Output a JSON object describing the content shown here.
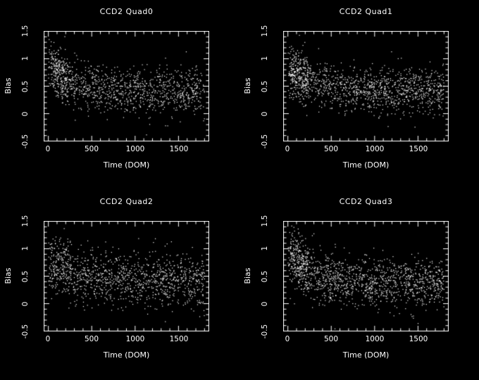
{
  "figure": {
    "background": "#000000",
    "foreground": "#ffffff",
    "layout": "2x2 scatter grid"
  },
  "chart_data": [
    {
      "type": "scatter",
      "title": "CCD2 Quad0",
      "xlabel": "Time (DOM)",
      "ylabel": "Bias",
      "xlim": [
        -50,
        1850
      ],
      "ylim": [
        -0.5,
        1.5
      ],
      "x_ticks": [
        0,
        500,
        1000,
        1500
      ],
      "y_ticks": [
        -0.5,
        0,
        0.5,
        1,
        1.5
      ],
      "x_tick_labels": [
        "0",
        "500",
        "1000",
        "1500"
      ],
      "y_tick_labels": [
        "-0.5",
        "0",
        "0.5",
        "1",
        "1.5"
      ],
      "points_model": {
        "seed": 11,
        "n": 1050,
        "mean_base": 0.4,
        "mean_amp": 0.45,
        "tau": 260,
        "sd": 0.21,
        "burst_n": 140,
        "burst_x": [
          30,
          220
        ]
      }
    },
    {
      "type": "scatter",
      "title": "CCD2 Quad1",
      "xlabel": "Time (DOM)",
      "ylabel": "Bias",
      "xlim": [
        -50,
        1850
      ],
      "ylim": [
        -0.5,
        1.5
      ],
      "x_ticks": [
        0,
        500,
        1000,
        1500
      ],
      "y_ticks": [
        -0.5,
        0,
        0.5,
        1,
        1.5
      ],
      "x_tick_labels": [
        "0",
        "500",
        "1000",
        "1500"
      ],
      "y_tick_labels": [
        "-0.5",
        "0",
        "0.5",
        "1",
        "1.5"
      ],
      "points_model": {
        "seed": 22,
        "n": 1150,
        "mean_base": 0.42,
        "mean_amp": 0.35,
        "tau": 300,
        "sd": 0.2,
        "burst_n": 160,
        "burst_x": [
          30,
          240
        ]
      }
    },
    {
      "type": "scatter",
      "title": "CCD2 Quad2",
      "xlabel": "Time (DOM)",
      "ylabel": "Bias",
      "xlim": [
        -50,
        1850
      ],
      "ylim": [
        -0.5,
        1.5
      ],
      "x_ticks": [
        0,
        500,
        1000,
        1500
      ],
      "y_ticks": [
        -0.5,
        0,
        0.5,
        1,
        1.5
      ],
      "x_tick_labels": [
        "0",
        "500",
        "1000",
        "1500"
      ],
      "y_tick_labels": [
        "-0.5",
        "0",
        "0.5",
        "1",
        "1.5"
      ],
      "points_model": {
        "seed": 33,
        "n": 1100,
        "mean_base": 0.4,
        "mean_amp": 0.3,
        "tau": 400,
        "sd": 0.24,
        "burst_n": 80,
        "burst_x": [
          30,
          260
        ]
      }
    },
    {
      "type": "scatter",
      "title": "CCD2 Quad3",
      "xlabel": "Time (DOM)",
      "ylabel": "Bias",
      "xlim": [
        -50,
        1850
      ],
      "ylim": [
        -0.5,
        1.5
      ],
      "x_ticks": [
        0,
        500,
        1000,
        1500
      ],
      "y_ticks": [
        -0.5,
        0,
        0.5,
        1,
        1.5
      ],
      "x_tick_labels": [
        "0",
        "500",
        "1000",
        "1500"
      ],
      "y_tick_labels": [
        "-0.5",
        "0",
        "0.5",
        "1",
        "1.5"
      ],
      "points_model": {
        "seed": 44,
        "n": 1200,
        "mean_base": 0.35,
        "mean_amp": 0.5,
        "tau": 280,
        "sd": 0.23,
        "burst_n": 170,
        "burst_x": [
          30,
          230
        ]
      }
    }
  ]
}
